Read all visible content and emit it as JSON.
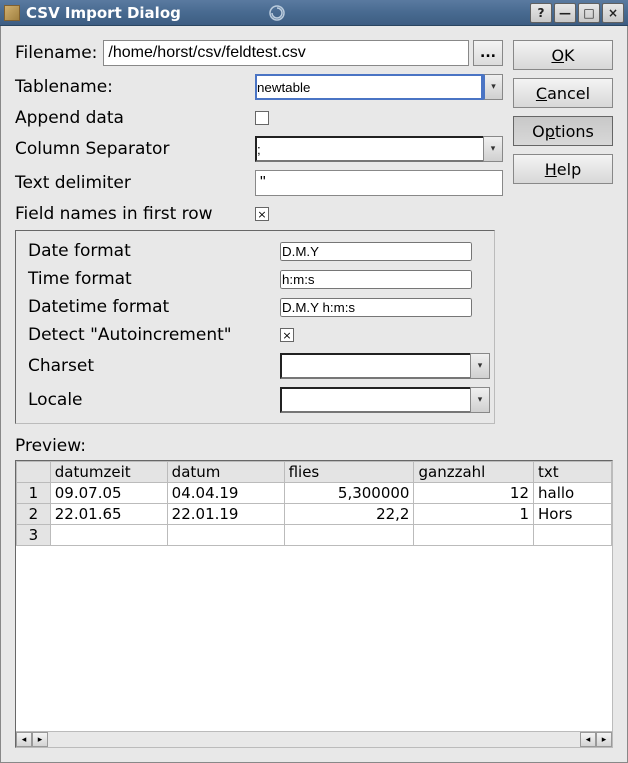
{
  "window": {
    "title": "CSV Import Dialog"
  },
  "buttons": {
    "ok_pre": "",
    "ok_ul": "O",
    "ok_post": "K",
    "cancel_pre": "",
    "cancel_ul": "C",
    "cancel_post": "ancel",
    "options_pre": "O",
    "options_ul": "p",
    "options_post": "tions",
    "help_pre": "",
    "help_ul": "H",
    "help_post": "elp",
    "browse": "..."
  },
  "labels": {
    "filename": "Filename:",
    "tablename": "Tablename:",
    "append": "Append data",
    "colsep": "Column Separator",
    "textdelim": "Text delimiter",
    "fieldnames": "Field names in first row",
    "dateformat": "Date format",
    "timeformat": "Time format",
    "datetimeformat": "Datetime format",
    "detectauto": "Detect \"Autoincrement\"",
    "charset": "Charset",
    "locale": "Locale",
    "preview": "Preview:"
  },
  "values": {
    "filename": "/home/horst/csv/feldtest.csv",
    "tablename": "newtable",
    "append_checked": false,
    "colsep": ";",
    "textdelim": "\"",
    "fieldnames_checked": true,
    "dateformat": "D.M.Y",
    "timeformat": "h:m:s",
    "datetimeformat": "D.M.Y h:m:s",
    "detectauto_checked": true,
    "charset": "",
    "locale": ""
  },
  "preview": {
    "columns": [
      "",
      "datumzeit",
      "datum",
      "flies",
      "ganzzahl",
      "txt"
    ],
    "rows": [
      [
        "1",
        "09.07.05",
        "04.04.19",
        "5,300000",
        "12",
        "hallo"
      ],
      [
        "2",
        "22.01.65",
        "22.01.19",
        "22,2",
        "1",
        "Hors"
      ],
      [
        "3",
        "",
        "",
        "",
        "",
        ""
      ]
    ],
    "numeric_cols": [
      3,
      4
    ],
    "header_bg": "#e4e4e4",
    "cell_bg": "#ffffff",
    "border_color": "#bbbbbb"
  },
  "colors": {
    "titlebar_grad_top": "#5a7aa0",
    "titlebar_grad_bot": "#3d5d82",
    "content_bg": "#e8e8e8",
    "accent_blue": "#4a74c4"
  }
}
